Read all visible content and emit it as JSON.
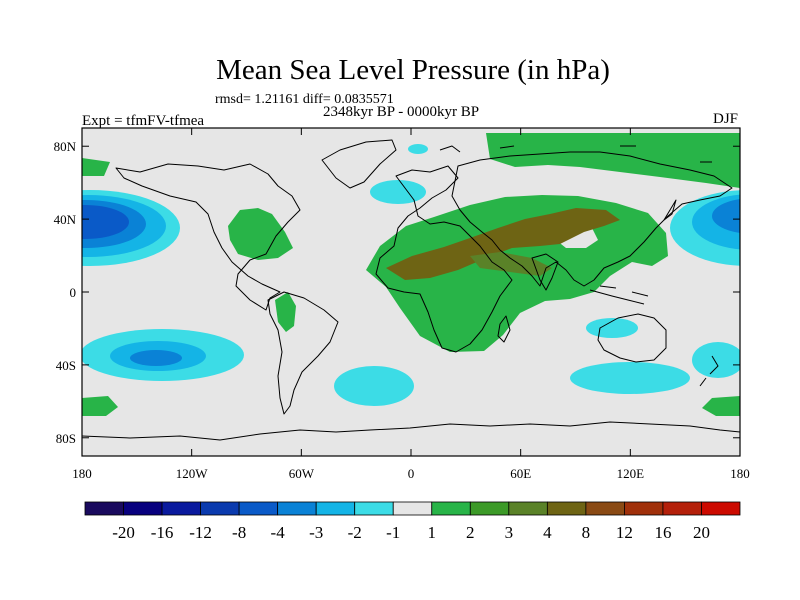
{
  "header": {
    "title": "Mean Sea Level Pressure (in hPa)",
    "stats": "rmsd= 1.21161 diff= 0.0835571",
    "period": "2348kyr BP - 0000kyr BP",
    "experiment": "Expt = tfmFV-tfmea",
    "season": "DJF"
  },
  "axes": {
    "lat_ticks": [
      {
        "value": 80,
        "label": "80N"
      },
      {
        "value": 40,
        "label": "40N"
      },
      {
        "value": 0,
        "label": "0"
      },
      {
        "value": -40,
        "label": "40S"
      },
      {
        "value": -80,
        "label": "80S"
      }
    ],
    "lon_ticks": [
      {
        "value": -180,
        "label": "180"
      },
      {
        "value": -120,
        "label": "120W"
      },
      {
        "value": -60,
        "label": "60W"
      },
      {
        "value": 0,
        "label": "0"
      },
      {
        "value": 60,
        "label": "60E"
      },
      {
        "value": 120,
        "label": "120E"
      },
      {
        "value": 180,
        "label": "180"
      }
    ],
    "lon_range": [
      -180,
      180
    ],
    "lat_range": [
      -90,
      90
    ]
  },
  "colorbar": {
    "labels": [
      "-20",
      "-16",
      "-12",
      "-8",
      "-4",
      "-3",
      "-2",
      "-1",
      "1",
      "2",
      "3",
      "4",
      "8",
      "12",
      "16",
      "20"
    ],
    "colors": [
      "#1a0a5e",
      "#08007e",
      "#0a1a9e",
      "#0a3aae",
      "#0a5ac8",
      "#0a82d6",
      "#14b4e6",
      "#3cdce6",
      "#e6e6e6",
      "#28b448",
      "#3c9a28",
      "#5a8228",
      "#6e6414",
      "#8a4a14",
      "#a0300a",
      "#b4200a",
      "#cc0a00"
    ]
  },
  "chart_data": {
    "type": "heatmap",
    "title": "Mean Sea Level Pressure (in hPa)",
    "variable": "mean sea level pressure difference",
    "units": "hPa",
    "season": "DJF",
    "levels": [
      -20,
      -16,
      -12,
      -8,
      -4,
      -3,
      -2,
      -1,
      1,
      2,
      3,
      4,
      8,
      12,
      16,
      20
    ],
    "features": [
      {
        "name": "north-pacific-low",
        "lon": [
          -180,
          -145
        ],
        "lat": [
          25,
          55
        ],
        "min_level": -4
      },
      {
        "name": "south-pacific-trough",
        "lon": [
          -180,
          -100
        ],
        "lat": [
          -50,
          -25
        ],
        "min_level": -3
      },
      {
        "name": "south-atlantic-trough",
        "lon": [
          -42,
          0
        ],
        "lat": [
          -60,
          -42
        ],
        "min_level": -2
      },
      {
        "name": "indian-ocean-trough",
        "lon": [
          57,
          121
        ],
        "lat": [
          -55,
          -42
        ],
        "min_level": -2
      },
      {
        "name": "north-atlantic-trough",
        "lon": [
          -20,
          0
        ],
        "lat": [
          52,
          65
        ],
        "min_level": -2
      },
      {
        "name": "eurasia-africa-high",
        "lon": [
          -20,
          140
        ],
        "lat": [
          -25,
          55
        ],
        "max_level": 4
      },
      {
        "name": "arctic-high",
        "lon": [
          40,
          180
        ],
        "lat": [
          68,
          88
        ],
        "max_level": 2
      },
      {
        "name": "north-america-high",
        "lon": [
          -100,
          -70
        ],
        "lat": [
          25,
          48
        ],
        "max_level": 2
      },
      {
        "name": "southern-ring-high",
        "lon": [
          -180,
          180
        ],
        "lat": [
          -62,
          -57
        ],
        "max_level": 2
      }
    ]
  }
}
